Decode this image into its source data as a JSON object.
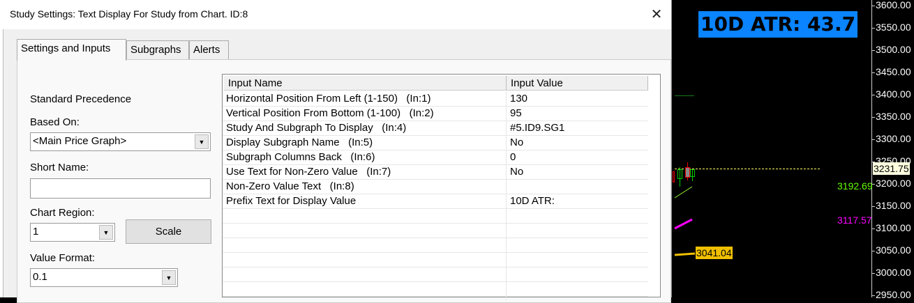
{
  "dialog": {
    "title": "Study Settings: Text Display For Study from Chart. ID:8",
    "close_icon": "close-icon"
  },
  "tabs": [
    {
      "label": "Settings and Inputs",
      "active": true
    },
    {
      "label": "Subgraphs"
    },
    {
      "label": "Alerts"
    }
  ],
  "settings": {
    "precedence": "Standard Precedence",
    "based_on_label": "Based On:",
    "based_on_value": "<Main Price Graph>",
    "short_name_label": "Short Name:",
    "short_name_value": "",
    "chart_region_label": "Chart Region:",
    "chart_region_value": "1",
    "scale_button": "Scale",
    "value_format_label": "Value Format:",
    "value_format_value": "0.1"
  },
  "inputs": {
    "headers": [
      "Input Name",
      "Input Value"
    ],
    "rows": [
      [
        "Horizontal Position From Left (1-150)   (In:1)",
        "130"
      ],
      [
        "Vertical Position From Bottom (1-100)   (In:2)",
        "95"
      ],
      [
        "Study And Subgraph To Display   (In:4)",
        "#5.ID9.SG1"
      ],
      [
        "Display Subgraph Name   (In:5)",
        "No"
      ],
      [
        "Subgraph Columns Back   (In:6)",
        "0"
      ],
      [
        "Use Text for Non-Zero Value   (In:7)",
        "No"
      ],
      [
        "Non-Zero Value Text   (In:8)",
        ""
      ],
      [
        "Prefix Text for Display Value",
        "10D ATR:"
      ]
    ]
  },
  "chart": {
    "atr_text": "10D ATR: 43.7",
    "atr_bg": "#0a84ff",
    "price_ticks": [
      "3600.00",
      "3550.00",
      "3500.00",
      "3450.00",
      "3400.00",
      "3350.00",
      "3300.00",
      "3250.00",
      "3200.00",
      "3150.00",
      "3100.00",
      "3050.00",
      "3000.00",
      "2950.00"
    ],
    "last_price": "3231.75",
    "ma_green": {
      "value": "3192.69",
      "color": "#66ff00"
    },
    "ma_magenta": {
      "value": "3117.57",
      "color": "#ff00ff"
    },
    "ma_yellow": {
      "value": "3041.04",
      "color": "#f0c000"
    }
  }
}
